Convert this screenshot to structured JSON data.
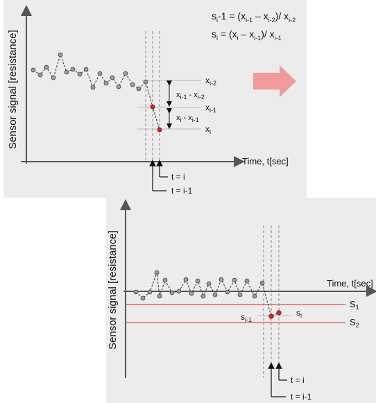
{
  "top_panel": {
    "ylabel": "Sensor signal [resistance]",
    "xlabel": "Time, t[sec]",
    "formula1": {
      "lhs": "s",
      "lhs_sub": "i",
      "lhs_rest": "-1 = (x",
      "s1": "i-1",
      "mid": " – x",
      "s2": "i-2",
      "tail": ")/ x",
      "s3": "i-2"
    },
    "formula2": {
      "lhs": "s",
      "lhs_sub": "i",
      "lhs_rest": " = (x",
      "s1": "i",
      "mid": " – x",
      "s2": "i-1",
      "tail": ")/ x",
      "s3": "i-1"
    },
    "labels": {
      "x_i2": "x",
      "x_i2_sub": "i-2",
      "x_i1": "x",
      "x_i1_sub": "i-1",
      "x_i": "x",
      "x_i_sub": "i",
      "diff1": "x",
      "diff1_sub_a": "i-1",
      "diff1_mid": " - x",
      "diff1_sub_b": "i-2",
      "diff2": "x",
      "diff2_sub_a": "i",
      "diff2_mid": " - x",
      "diff2_sub_b": "i-1"
    },
    "time_labels": {
      "t_i": "t = i",
      "t_i1": "t = i-1"
    }
  },
  "bottom_panel": {
    "ylabel": "Sensor signal [resistance]",
    "xlabel": "Time, t[sec]",
    "threshold1": "S",
    "threshold1_sub": "1",
    "threshold2": "S",
    "threshold2_sub": "2",
    "s_i1": "s",
    "s_i1_sub": "i-1",
    "s_i": "s",
    "s_i_sub": "i",
    "time_labels": {
      "t_i": "t = i",
      "t_i1": "t = i-1"
    }
  },
  "colors": {
    "arrow": "#f19a9a",
    "threshold": "#e64a4a",
    "point_red": "#d9282f",
    "point_gray": "#9a9a9a"
  }
}
